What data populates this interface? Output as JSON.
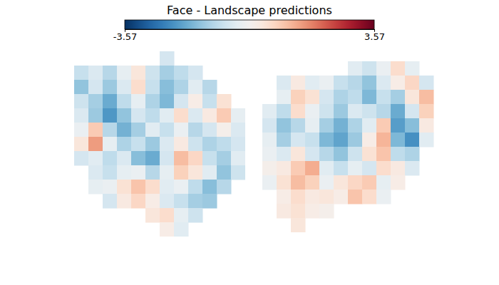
{
  "chart_data": {
    "type": "heatmap",
    "title": "Face - Landscape predictions",
    "tick_labels": false,
    "colorbar": {
      "range": [
        -3.57,
        3.57
      ],
      "ticks": [
        -3.57,
        3.57
      ]
    },
    "hemispheres": [
      {
        "cells": [
          [
            null,
            null,
            null,
            null,
            null,
            null,
            -0.6,
            null,
            null,
            null,
            null,
            null
          ],
          [
            -0.8,
            -0.5,
            -1.0,
            -0.3,
            0.4,
            -0.7,
            -1.2,
            -0.9,
            -0.6,
            null,
            null,
            null
          ],
          [
            -1.4,
            -0.6,
            -1.3,
            -0.5,
            0.6,
            -0.8,
            -1.5,
            -1.1,
            -0.4,
            -1.0,
            null,
            null
          ],
          [
            -0.7,
            -1.2,
            -1.8,
            -0.9,
            -0.3,
            -1.1,
            -1.6,
            -0.6,
            0.2,
            -0.8,
            0.5,
            null
          ],
          [
            -0.5,
            -1.3,
            -2.1,
            -1.4,
            -0.6,
            -0.9,
            -0.4,
            0.6,
            -0.5,
            0.3,
            0.9,
            -0.3
          ],
          [
            -0.2,
            0.9,
            -1.0,
            -1.7,
            -1.2,
            -0.4,
            -0.8,
            -0.2,
            -1.0,
            -0.6,
            0.1,
            -0.5
          ],
          [
            0.4,
            1.5,
            -0.3,
            -1.1,
            -0.8,
            -1.3,
            -0.5,
            0.3,
            -0.7,
            -1.1,
            -0.9,
            -0.6
          ],
          [
            -0.6,
            -0.4,
            -0.9,
            -0.5,
            -1.5,
            -1.8,
            -0.6,
            1.1,
            0.7,
            -0.8,
            -1.2,
            -0.4
          ],
          [
            null,
            -0.5,
            -0.8,
            -0.3,
            -0.2,
            -1.0,
            -0.3,
            0.8,
            0.4,
            -0.4,
            -1.4,
            -0.7
          ],
          [
            null,
            -0.3,
            -0.2,
            0.5,
            1.0,
            0.6,
            -0.4,
            -0.2,
            -0.9,
            -1.5,
            -1.0,
            null
          ],
          [
            null,
            null,
            -0.6,
            0.3,
            0.7,
            0.2,
            -0.5,
            -0.8,
            -1.2,
            -1.3,
            null,
            null
          ],
          [
            null,
            null,
            null,
            null,
            null,
            0.4,
            0.6,
            -0.3,
            -0.7,
            null,
            null,
            null
          ],
          [
            null,
            null,
            null,
            null,
            null,
            null,
            0.2,
            -0.4,
            null,
            null,
            null,
            null
          ]
        ]
      },
      {
        "cells": [
          [
            null,
            null,
            null,
            null,
            null,
            null,
            -0.4,
            -0.7,
            -0.2,
            0.6,
            -0.3,
            null,
            null
          ],
          [
            null,
            -0.5,
            0.3,
            -0.4,
            -0.2,
            -0.8,
            -1.0,
            -1.4,
            -0.5,
            0.2,
            0.7,
            -0.6,
            null
          ],
          [
            null,
            -0.3,
            0.8,
            0.5,
            -0.6,
            -1.1,
            -0.9,
            -1.6,
            -0.8,
            -1.2,
            0.4,
            1.1,
            null
          ],
          [
            -0.4,
            -0.9,
            0.6,
            -0.2,
            -0.7,
            -1.3,
            -0.5,
            -0.7,
            -1.0,
            -1.8,
            -0.6,
            0.8,
            null
          ],
          [
            -0.6,
            -1.4,
            -1.0,
            -0.3,
            -1.2,
            -1.7,
            -1.1,
            -0.4,
            0.9,
            -2.0,
            -1.5,
            0.3,
            null
          ],
          [
            -0.3,
            -1.2,
            -0.6,
            -0.8,
            -1.6,
            -1.9,
            -1.3,
            0.2,
            1.2,
            -1.6,
            -2.2,
            -0.4,
            null
          ],
          [
            -0.2,
            -0.5,
            0.4,
            -0.6,
            -1.0,
            -1.4,
            -0.7,
            0.5,
            1.0,
            -0.9,
            -1.1,
            null,
            null
          ],
          [
            0.1,
            0.3,
            0.9,
            1.3,
            -0.4,
            -0.8,
            -0.3,
            -0.6,
            0.6,
            0.3,
            -0.5,
            null,
            null
          ],
          [
            -0.2,
            0.5,
            1.1,
            0.8,
            -0.2,
            0.4,
            0.7,
            0.9,
            -0.3,
            0.2,
            null,
            null,
            null
          ],
          [
            null,
            0.2,
            0.6,
            0.3,
            0.4,
            0.2,
            1.0,
            0.6,
            -0.2,
            null,
            null,
            null,
            null
          ],
          [
            null,
            0.3,
            0.5,
            0.2,
            0.1,
            null,
            null,
            null,
            null,
            null,
            null,
            null,
            null
          ],
          [
            null,
            null,
            0.4,
            null,
            null,
            null,
            null,
            null,
            null,
            null,
            null,
            null,
            null
          ]
        ]
      }
    ]
  }
}
